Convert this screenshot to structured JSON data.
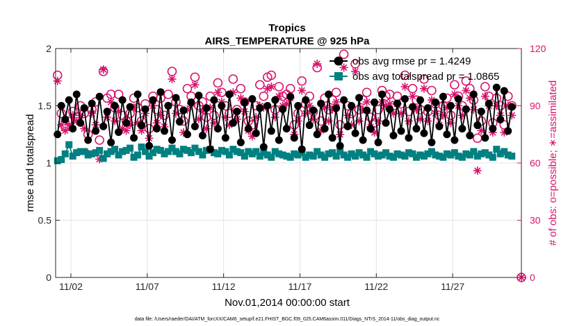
{
  "chart_data": {
    "type": "line",
    "title": "Tropics",
    "subtitle": "AIRS_TEMPERATURE @ 925 hPa",
    "xlabel": "Nov.01,2014 00:00:00 start",
    "ylabel": "rmse and totalspread",
    "y2label": "# of obs: o=possible; ∗=assimilated",
    "xlim": [
      0,
      30.5
    ],
    "ylim": [
      0,
      2
    ],
    "y2lim": [
      0,
      120
    ],
    "xticks": [
      {
        "x": 1,
        "label": "11/02"
      },
      {
        "x": 6,
        "label": "11/07"
      },
      {
        "x": 11,
        "label": "11/12"
      },
      {
        "x": 16,
        "label": "11/17"
      },
      {
        "x": 21,
        "label": "11/22"
      },
      {
        "x": 26,
        "label": "11/27"
      }
    ],
    "yticks": [
      {
        "v": 0,
        "label": "0"
      },
      {
        "v": 0.5,
        "label": "0.5"
      },
      {
        "v": 1,
        "label": "1"
      },
      {
        "v": 1.5,
        "label": "1.5"
      },
      {
        "v": 2,
        "label": "2"
      }
    ],
    "y2ticks": [
      {
        "v": 0,
        "label": "0"
      },
      {
        "v": 30,
        "label": "30"
      },
      {
        "v": 60,
        "label": "60"
      },
      {
        "v": 90,
        "label": "90"
      },
      {
        "v": 120,
        "label": "120"
      }
    ],
    "grid": true,
    "legend_position": "top-right",
    "series": [
      {
        "name": "obs avg rmse pr = 1.4249",
        "color": "#000000",
        "marker": "circle"
      },
      {
        "name": "obs avg totalspread pr = 1.0865",
        "color": "#008080",
        "marker": "square"
      },
      {
        "name": "possible",
        "color": "#d6136b",
        "marker": "open-circle"
      },
      {
        "name": "assimilated",
        "color": "#d6136b",
        "marker": "asterisk"
      }
    ],
    "step_days": 0.25,
    "n_points": 120,
    "rmse": [
      1.25,
      1.5,
      1.38,
      1.55,
      1.3,
      1.6,
      1.35,
      1.48,
      1.2,
      1.52,
      1.28,
      1.58,
      1.32,
      1.45,
      1.18,
      1.5,
      1.27,
      1.55,
      1.35,
      1.49,
      1.22,
      1.6,
      1.33,
      1.47,
      1.15,
      1.55,
      1.3,
      1.62,
      1.28,
      1.5,
      1.2,
      1.57,
      1.36,
      1.46,
      1.25,
      1.53,
      1.32,
      1.59,
      1.24,
      1.48,
      1.12,
      1.55,
      1.3,
      1.5,
      1.22,
      1.6,
      1.35,
      1.45,
      1.18,
      1.53,
      1.3,
      1.56,
      1.26,
      1.48,
      1.14,
      1.5,
      1.28,
      1.55,
      1.2,
      1.47,
      1.3,
      1.58,
      1.22,
      1.5,
      1.12,
      1.55,
      1.33,
      1.46,
      1.25,
      1.52,
      1.3,
      1.6,
      1.22,
      1.48,
      1.15,
      1.55,
      1.32,
      1.5,
      1.26,
      1.57,
      1.2,
      1.46,
      1.3,
      1.53,
      1.18,
      1.6,
      1.35,
      1.47,
      1.24,
      1.52,
      1.28,
      1.56,
      1.22,
      1.49,
      1.3,
      1.55,
      1.26,
      1.48,
      1.18,
      1.53,
      1.32,
      1.58,
      1.25,
      1.5,
      1.2,
      1.56,
      1.3,
      1.47,
      1.24,
      1.6,
      1.33,
      1.45,
      1.22,
      1.52,
      1.3,
      1.66,
      1.38,
      1.63,
      1.28,
      1.49
    ],
    "spread": [
      1.02,
      1.03,
      1.08,
      1.16,
      1.06,
      1.09,
      1.1,
      1.1,
      1.07,
      1.08,
      1.09,
      1.11,
      1.04,
      1.08,
      1.1,
      1.12,
      1.07,
      1.1,
      1.11,
      1.13,
      1.05,
      1.07,
      1.14,
      1.1,
      1.06,
      1.09,
      1.12,
      1.11,
      1.08,
      1.1,
      1.13,
      1.1,
      1.08,
      1.12,
      1.11,
      1.09,
      1.13,
      1.1,
      1.07,
      1.11,
      1.12,
      1.09,
      1.08,
      1.11,
      1.1,
      1.07,
      1.12,
      1.1,
      1.09,
      1.06,
      1.1,
      1.08,
      1.1,
      1.06,
      1.09,
      1.07,
      1.05,
      1.1,
      1.08,
      1.07,
      1.06,
      1.05,
      1.08,
      1.07,
      1.09,
      1.05,
      1.07,
      1.06,
      1.1,
      1.07,
      1.05,
      1.08,
      1.09,
      1.06,
      1.1,
      1.07,
      1.05,
      1.08,
      1.06,
      1.09,
      1.07,
      1.05,
      1.1,
      1.08,
      1.06,
      1.07,
      1.09,
      1.06,
      1.05,
      1.08,
      1.07,
      1.06,
      1.09,
      1.08,
      1.05,
      1.07,
      1.06,
      1.08,
      1.1,
      1.07,
      1.06,
      1.05,
      1.08,
      1.07,
      1.09,
      1.06,
      1.05,
      1.08,
      1.07,
      1.1,
      1.06,
      1.08,
      1.09,
      1.07,
      1.05,
      1.12,
      1.08,
      1.1,
      1.07,
      1.06
    ],
    "possible": [
      106,
      86,
      79,
      82,
      87,
      84,
      90,
      86,
      75,
      88,
      92,
      72,
      108,
      94,
      96,
      89,
      96,
      85,
      82,
      86,
      94,
      89,
      82,
      91,
      78,
      95,
      88,
      94,
      85,
      96,
      108,
      92,
      88,
      82,
      99,
      95,
      105,
      90,
      92,
      84,
      95,
      85,
      102,
      97,
      90,
      86,
      104,
      88,
      99,
      92,
      82,
      80,
      90,
      101,
      95,
      105,
      106,
      88,
      100,
      95,
      96,
      99,
      80,
      86,
      103,
      91,
      95,
      87,
      110,
      82,
      94,
      88,
      93,
      97,
      80,
      117,
      90,
      86,
      112,
      88,
      93,
      97,
      84,
      81,
      88,
      98,
      95,
      96,
      90,
      95,
      91,
      106,
      87,
      99,
      93,
      88,
      104,
      87,
      98,
      91,
      85,
      90,
      94,
      85,
      101,
      95,
      90,
      103,
      99,
      93,
      73,
      82,
      100,
      95,
      81,
      94,
      90,
      80,
      95,
      90
    ],
    "assimilated": [
      103,
      80,
      77,
      80,
      85,
      82,
      85,
      78,
      65,
      86,
      80,
      62,
      109,
      84,
      92,
      82,
      87,
      78,
      77,
      80,
      89,
      81,
      77,
      86,
      73,
      90,
      81,
      85,
      79,
      90,
      104,
      86,
      82,
      76,
      88,
      91,
      101,
      83,
      87,
      78,
      89,
      81,
      97,
      92,
      84,
      80,
      97,
      83,
      94,
      87,
      77,
      74,
      84,
      90,
      89,
      99,
      100,
      84,
      95,
      90,
      91,
      94,
      75,
      82,
      98,
      86,
      90,
      83,
      112,
      77,
      89,
      82,
      88,
      92,
      75,
      110,
      85,
      80,
      108,
      82,
      88,
      92,
      79,
      76,
      82,
      92,
      90,
      91,
      86,
      91,
      86,
      100,
      82,
      95,
      88,
      83,
      99,
      82,
      93,
      86,
      80,
      85,
      89,
      81,
      96,
      90,
      85,
      98,
      94,
      88,
      56,
      77,
      95,
      90,
      76,
      90,
      85,
      76,
      90,
      85
    ],
    "zero_marker": {
      "x": 30.5,
      "possible": 0,
      "assimilated": 0
    },
    "footnote": "data file: /Users/raeder/DAI/ATM_forcXX/CAM6_setup/f.e21.FHIST_BGC.f09_025.CAM6assim.011/Diags_NTrS_2014-11/obs_diag_output.nc"
  }
}
